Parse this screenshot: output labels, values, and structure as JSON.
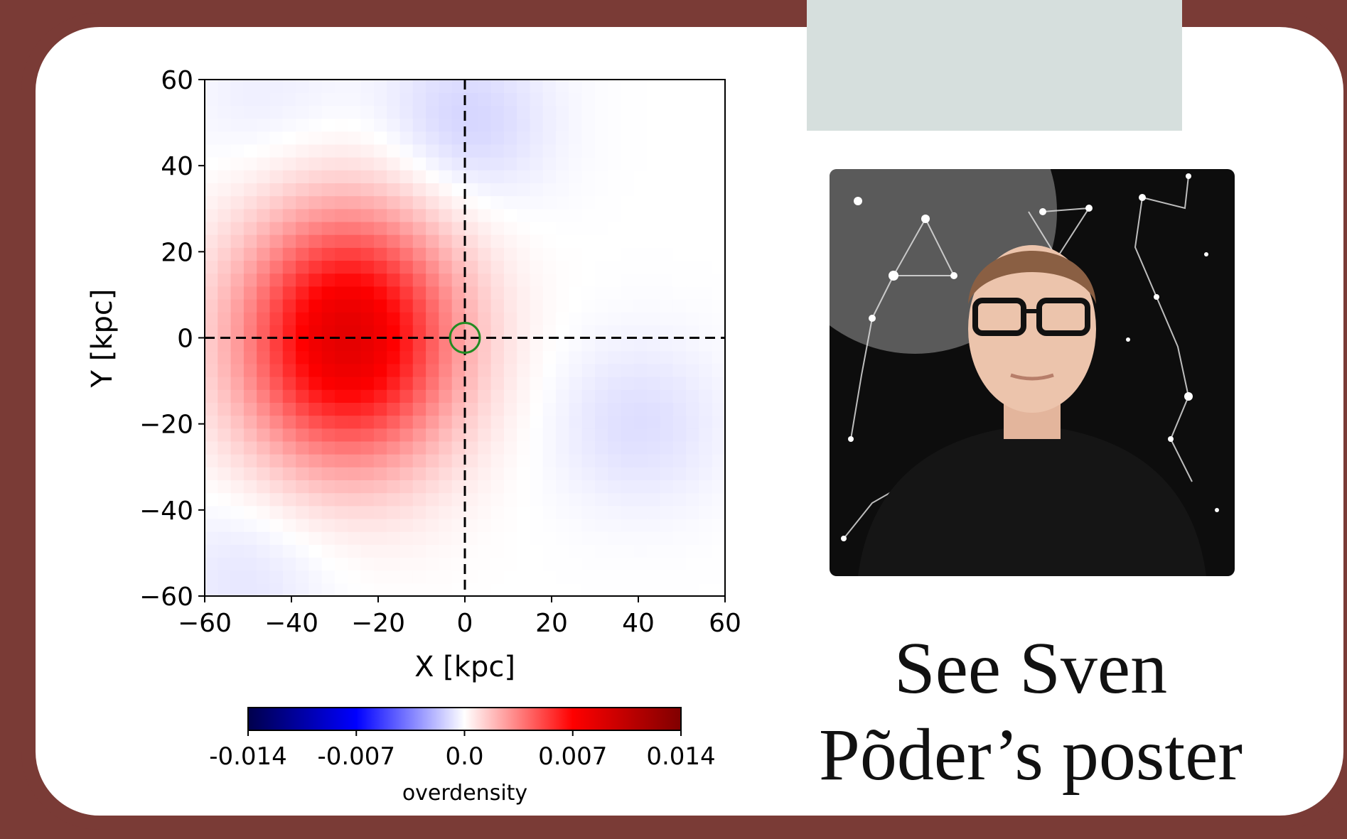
{
  "chart_data": {
    "type": "heatmap",
    "xlabel": "X [kpc]",
    "ylabel": "Y [kpc]",
    "xlim": [
      -60,
      60
    ],
    "ylim": [
      -60,
      60
    ],
    "xticks": [
      "−60",
      "−40",
      "−20",
      "0",
      "20",
      "40",
      "60"
    ],
    "yticks": [
      "60",
      "40",
      "20",
      "0",
      "−20",
      "−40",
      "−60"
    ],
    "colormap": "seismic",
    "vmin": -0.014,
    "vmax": 0.014,
    "peak_overdensity": {
      "x": -27,
      "y": 0,
      "value": 0.0085
    },
    "underdensity_regions": [
      {
        "x": 0,
        "y": 50,
        "value": -0.0012
      },
      {
        "x": 40,
        "y": -20,
        "value": -0.0009
      },
      {
        "x": -50,
        "y": -55,
        "value": -0.0007
      },
      {
        "x": -45,
        "y": 55,
        "value": -0.0005
      }
    ],
    "reference_lines": {
      "x": 0,
      "y": 0,
      "style": "dashed",
      "color": "#000000"
    },
    "marker": {
      "x": 0,
      "y": 0,
      "shape": "circle",
      "color": "#228b22"
    },
    "colorbar": {
      "label": "overdensity",
      "ticks": [
        "-0.014",
        "-0.007",
        "0.0",
        "0.007",
        "0.014"
      ]
    }
  },
  "caption": {
    "line1": "See Sven",
    "line2": "Põder’s poster"
  },
  "photo_icon": "person-photo-constellations",
  "colors": {
    "frame": "#7a3b36",
    "panel": "#d6dfdd"
  }
}
